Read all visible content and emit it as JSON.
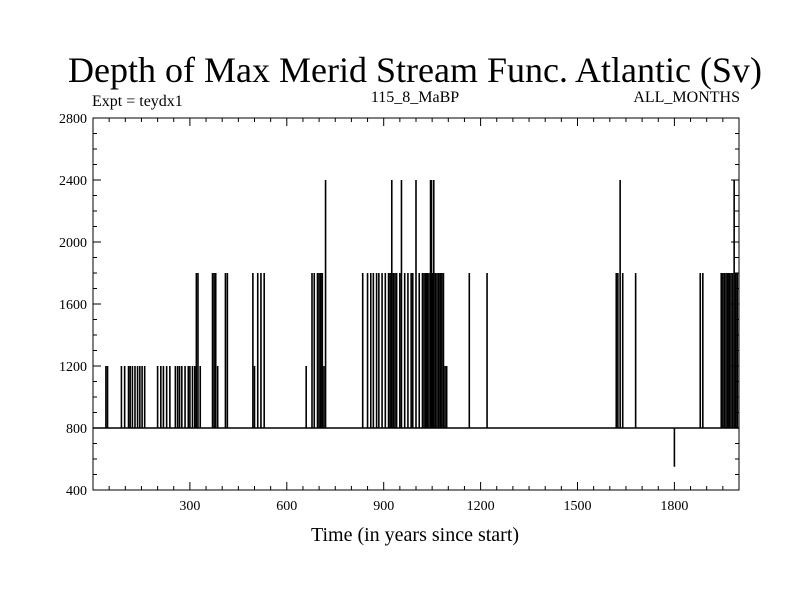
{
  "chart_data": {
    "type": "line",
    "title": "Depth of Max Merid Stream Func. Atlantic (Sv)",
    "subtitle_left": "Expt = teydx1",
    "subtitle_center": "115_8_MaBP",
    "subtitle_right": "ALL_MONTHS",
    "xlabel": "Time (in years since start)",
    "ylabel": "",
    "xlim": [
      0,
      2000
    ],
    "ylim": [
      400,
      2800
    ],
    "xticks": [
      300,
      600,
      900,
      1200,
      1500,
      1800
    ],
    "yticks": [
      400,
      800,
      1200,
      1600,
      2000,
      2400,
      2800
    ],
    "baseline": 800,
    "series": [
      {
        "spikes": [
          [
            40,
            1200
          ],
          [
            45,
            1200
          ],
          [
            88,
            1200
          ],
          [
            98,
            1200
          ],
          [
            110,
            1200
          ],
          [
            115,
            1200
          ],
          [
            122,
            1200
          ],
          [
            130,
            1200
          ],
          [
            138,
            1200
          ],
          [
            145,
            1200
          ],
          [
            152,
            1200
          ],
          [
            160,
            1200
          ],
          [
            200,
            1200
          ],
          [
            210,
            1200
          ],
          [
            218,
            1200
          ],
          [
            228,
            1200
          ],
          [
            238,
            1200
          ],
          [
            255,
            1200
          ],
          [
            262,
            1200
          ],
          [
            268,
            1200
          ],
          [
            275,
            1200
          ],
          [
            285,
            1200
          ],
          [
            295,
            1200
          ],
          [
            300,
            1200
          ],
          [
            308,
            1200
          ],
          [
            315,
            1200
          ],
          [
            320,
            1800
          ],
          [
            325,
            1800
          ],
          [
            332,
            1200
          ],
          [
            370,
            1800
          ],
          [
            375,
            1800
          ],
          [
            380,
            1800
          ],
          [
            386,
            1200
          ],
          [
            410,
            1800
          ],
          [
            416,
            1800
          ],
          [
            495,
            1800
          ],
          [
            500,
            1200
          ],
          [
            510,
            1800
          ],
          [
            520,
            1800
          ],
          [
            530,
            1800
          ],
          [
            660,
            1200
          ],
          [
            678,
            1800
          ],
          [
            685,
            1800
          ],
          [
            695,
            1800
          ],
          [
            700,
            1800
          ],
          [
            705,
            1800
          ],
          [
            710,
            1800
          ],
          [
            715,
            1200
          ],
          [
            720,
            2400
          ],
          [
            835,
            1800
          ],
          [
            850,
            1800
          ],
          [
            860,
            1800
          ],
          [
            868,
            1800
          ],
          [
            878,
            1800
          ],
          [
            885,
            1800
          ],
          [
            895,
            1800
          ],
          [
            905,
            1800
          ],
          [
            915,
            1800
          ],
          [
            920,
            1800
          ],
          [
            925,
            2400
          ],
          [
            930,
            1800
          ],
          [
            935,
            1800
          ],
          [
            940,
            1800
          ],
          [
            950,
            1800
          ],
          [
            955,
            2400
          ],
          [
            965,
            1800
          ],
          [
            975,
            1800
          ],
          [
            985,
            1800
          ],
          [
            990,
            1800
          ],
          [
            1000,
            2400
          ],
          [
            1010,
            1800
          ],
          [
            1020,
            1800
          ],
          [
            1025,
            1800
          ],
          [
            1030,
            1800
          ],
          [
            1035,
            1800
          ],
          [
            1040,
            1800
          ],
          [
            1045,
            2400
          ],
          [
            1048,
            2400
          ],
          [
            1052,
            1800
          ],
          [
            1055,
            2400
          ],
          [
            1060,
            1800
          ],
          [
            1065,
            1800
          ],
          [
            1070,
            1800
          ],
          [
            1075,
            1800
          ],
          [
            1080,
            1800
          ],
          [
            1085,
            1800
          ],
          [
            1090,
            1200
          ],
          [
            1095,
            1200
          ],
          [
            1165,
            1800
          ],
          [
            1220,
            1800
          ],
          [
            1620,
            1800
          ],
          [
            1625,
            1800
          ],
          [
            1632,
            2400
          ],
          [
            1640,
            1800
          ],
          [
            1680,
            1800
          ],
          [
            1800,
            550
          ],
          [
            1880,
            1800
          ],
          [
            1888,
            1800
          ],
          [
            1945,
            1800
          ],
          [
            1950,
            1800
          ],
          [
            1955,
            1800
          ],
          [
            1960,
            1800
          ],
          [
            1965,
            1800
          ],
          [
            1970,
            1800
          ],
          [
            1975,
            1800
          ],
          [
            1980,
            1800
          ],
          [
            1985,
            2400
          ],
          [
            1990,
            1800
          ],
          [
            1995,
            1800
          ]
        ]
      }
    ]
  }
}
